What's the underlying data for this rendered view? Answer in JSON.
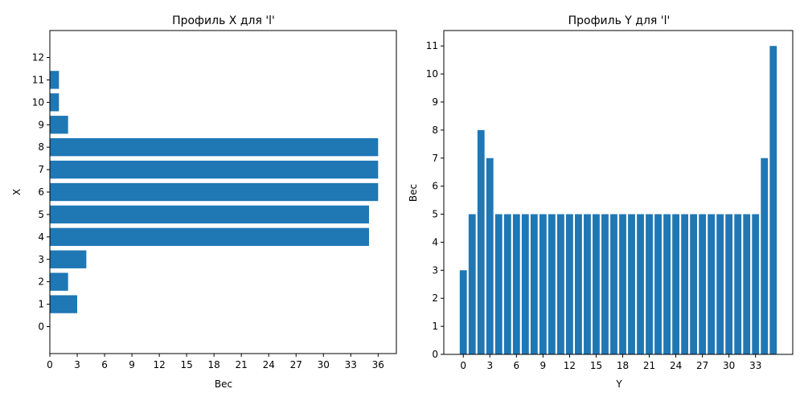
{
  "colors": {
    "bar": "#1f77b4",
    "axis": "#000000",
    "background": "#ffffff"
  },
  "chart_data": [
    {
      "type": "bar",
      "orientation": "horizontal",
      "title": "Профиль X для 'l'",
      "xlabel": "Вес",
      "ylabel": "X",
      "grid": false,
      "categories": [
        0,
        1,
        2,
        3,
        4,
        5,
        6,
        7,
        8,
        9,
        10,
        11,
        12
      ],
      "values": [
        0,
        3,
        2,
        4,
        35,
        35,
        36,
        36,
        36,
        2,
        1,
        1,
        0
      ],
      "xlim": [
        0,
        38
      ],
      "xticks": [
        0,
        3,
        6,
        9,
        12,
        15,
        18,
        21,
        24,
        27,
        30,
        33,
        36
      ],
      "ylim": [
        -1.2,
        13.2
      ],
      "yticks": [
        0,
        1,
        2,
        3,
        4,
        5,
        6,
        7,
        8,
        9,
        10,
        11,
        12
      ]
    },
    {
      "type": "bar",
      "orientation": "vertical",
      "title": "Профиль Y для 'l'",
      "xlabel": "Y",
      "ylabel": "Вес",
      "grid": false,
      "categories": [
        0,
        1,
        2,
        3,
        4,
        5,
        6,
        7,
        8,
        9,
        10,
        11,
        12,
        13,
        14,
        15,
        16,
        17,
        18,
        19,
        20,
        21,
        22,
        23,
        24,
        25,
        26,
        27,
        28,
        29,
        30,
        31,
        32,
        33,
        34,
        35
      ],
      "values": [
        3,
        5,
        8,
        7,
        5,
        5,
        5,
        5,
        5,
        5,
        5,
        5,
        5,
        5,
        5,
        5,
        5,
        5,
        5,
        5,
        5,
        5,
        5,
        5,
        5,
        5,
        5,
        5,
        5,
        5,
        5,
        5,
        5,
        5,
        7,
        11
      ],
      "xlim": [
        -2.2,
        37.2
      ],
      "xticks": [
        0,
        3,
        6,
        9,
        12,
        15,
        18,
        21,
        24,
        27,
        30,
        33
      ],
      "ylim": [
        0,
        11.55
      ],
      "yticks": [
        0,
        1,
        2,
        3,
        4,
        5,
        6,
        7,
        8,
        9,
        10,
        11
      ]
    }
  ]
}
